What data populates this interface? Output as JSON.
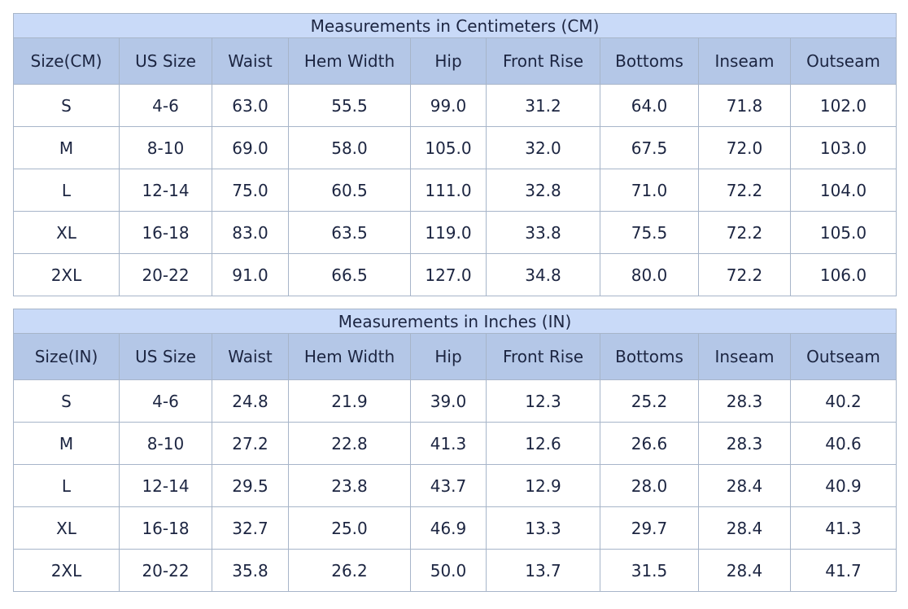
{
  "tables": [
    {
      "title": "Measurements in Centimeters (CM)",
      "headers": [
        "Size(CM)",
        "US Size",
        "Waist",
        "Hem Width",
        "Hip",
        "Front Rise",
        "Bottoms",
        "Inseam",
        "Outseam"
      ],
      "rows": [
        [
          "S",
          "4-6",
          "63.0",
          "55.5",
          "99.0",
          "31.2",
          "64.0",
          "71.8",
          "102.0"
        ],
        [
          "M",
          "8-10",
          "69.0",
          "58.0",
          "105.0",
          "32.0",
          "67.5",
          "72.0",
          "103.0"
        ],
        [
          "L",
          "12-14",
          "75.0",
          "60.5",
          "111.0",
          "32.8",
          "71.0",
          "72.2",
          "104.0"
        ],
        [
          "XL",
          "16-18",
          "83.0",
          "63.5",
          "119.0",
          "33.8",
          "75.5",
          "72.2",
          "105.0"
        ],
        [
          "2XL",
          "20-22",
          "91.0",
          "66.5",
          "127.0",
          "34.8",
          "80.0",
          "72.2",
          "106.0"
        ]
      ]
    },
    {
      "title": "Measurements in Inches (IN)",
      "headers": [
        "Size(IN)",
        "US Size",
        "Waist",
        "Hem Width",
        "Hip",
        "Front Rise",
        "Bottoms",
        "Inseam",
        "Outseam"
      ],
      "rows": [
        [
          "S",
          "4-6",
          "24.8",
          "21.9",
          "39.0",
          "12.3",
          "25.2",
          "28.3",
          "40.2"
        ],
        [
          "M",
          "8-10",
          "27.2",
          "22.8",
          "41.3",
          "12.6",
          "26.6",
          "28.3",
          "40.6"
        ],
        [
          "L",
          "12-14",
          "29.5",
          "23.8",
          "43.7",
          "12.9",
          "28.0",
          "28.4",
          "40.9"
        ],
        [
          "XL",
          "16-18",
          "32.7",
          "25.0",
          "46.9",
          "13.3",
          "29.7",
          "28.4",
          "41.3"
        ],
        [
          "2XL",
          "20-22",
          "35.8",
          "26.2",
          "50.0",
          "13.7",
          "31.5",
          "28.4",
          "41.7"
        ]
      ]
    }
  ]
}
